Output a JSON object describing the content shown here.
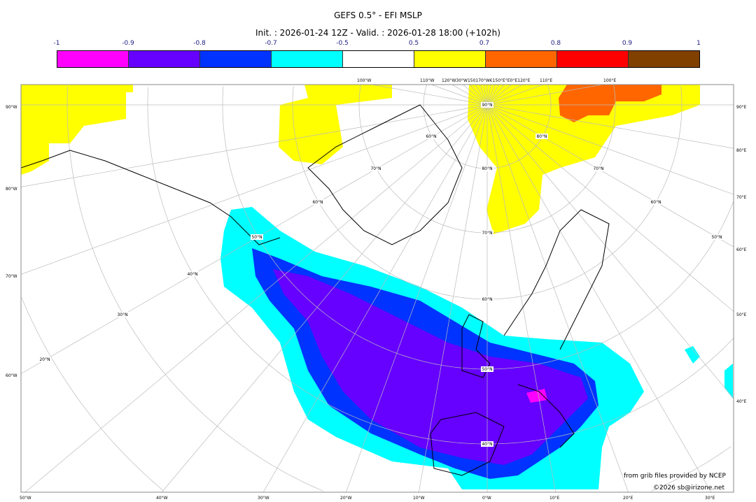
{
  "title": "GEFS 0.5° - EFI MSLP",
  "subtitle": "Init. : 2026-01-24 12Z - Valid. : 2026-01-28 18:00 (+102h)",
  "colorbar": {
    "ticks": [
      "-1",
      "-0.9",
      "-0.8",
      "-0.7",
      "-0.5",
      "0.5",
      "0.7",
      "0.8",
      "0.9",
      "1"
    ],
    "colors": [
      "#ff00ff",
      "#6600ff",
      "#0033ff",
      "#00ffff",
      "#ffffff",
      "#ffff00",
      "#ff6600",
      "#ff0000",
      "#804000"
    ]
  },
  "axes": {
    "left": [
      "90°W",
      "80°W",
      "70°W",
      "60°W"
    ],
    "right": [
      "90°E",
      "80°E",
      "70°E",
      "60°E",
      "50°E",
      "40°E"
    ],
    "bottom": [
      "50°W",
      "40°W",
      "30°W",
      "20°W",
      "10°W",
      "0°W",
      "10°E",
      "20°E",
      "30°E"
    ],
    "top": [
      "100°W",
      "110°W",
      "120°W30°W150170°W€150°E°E0°E120°E",
      "110°E",
      "100°E"
    ]
  },
  "grid_labels": [
    "90°N",
    "80°N",
    "80°N",
    "70°N",
    "60°N",
    "50°N",
    "40°N",
    "50°N",
    "40°N",
    "30°N",
    "20°N",
    "60°N",
    "70°N",
    "60°N",
    "70°N",
    "60°N",
    "50°N"
  ],
  "credits": {
    "source": "from grib files provided by NCEP",
    "copyright": "©2026 sb@irizone.net"
  }
}
